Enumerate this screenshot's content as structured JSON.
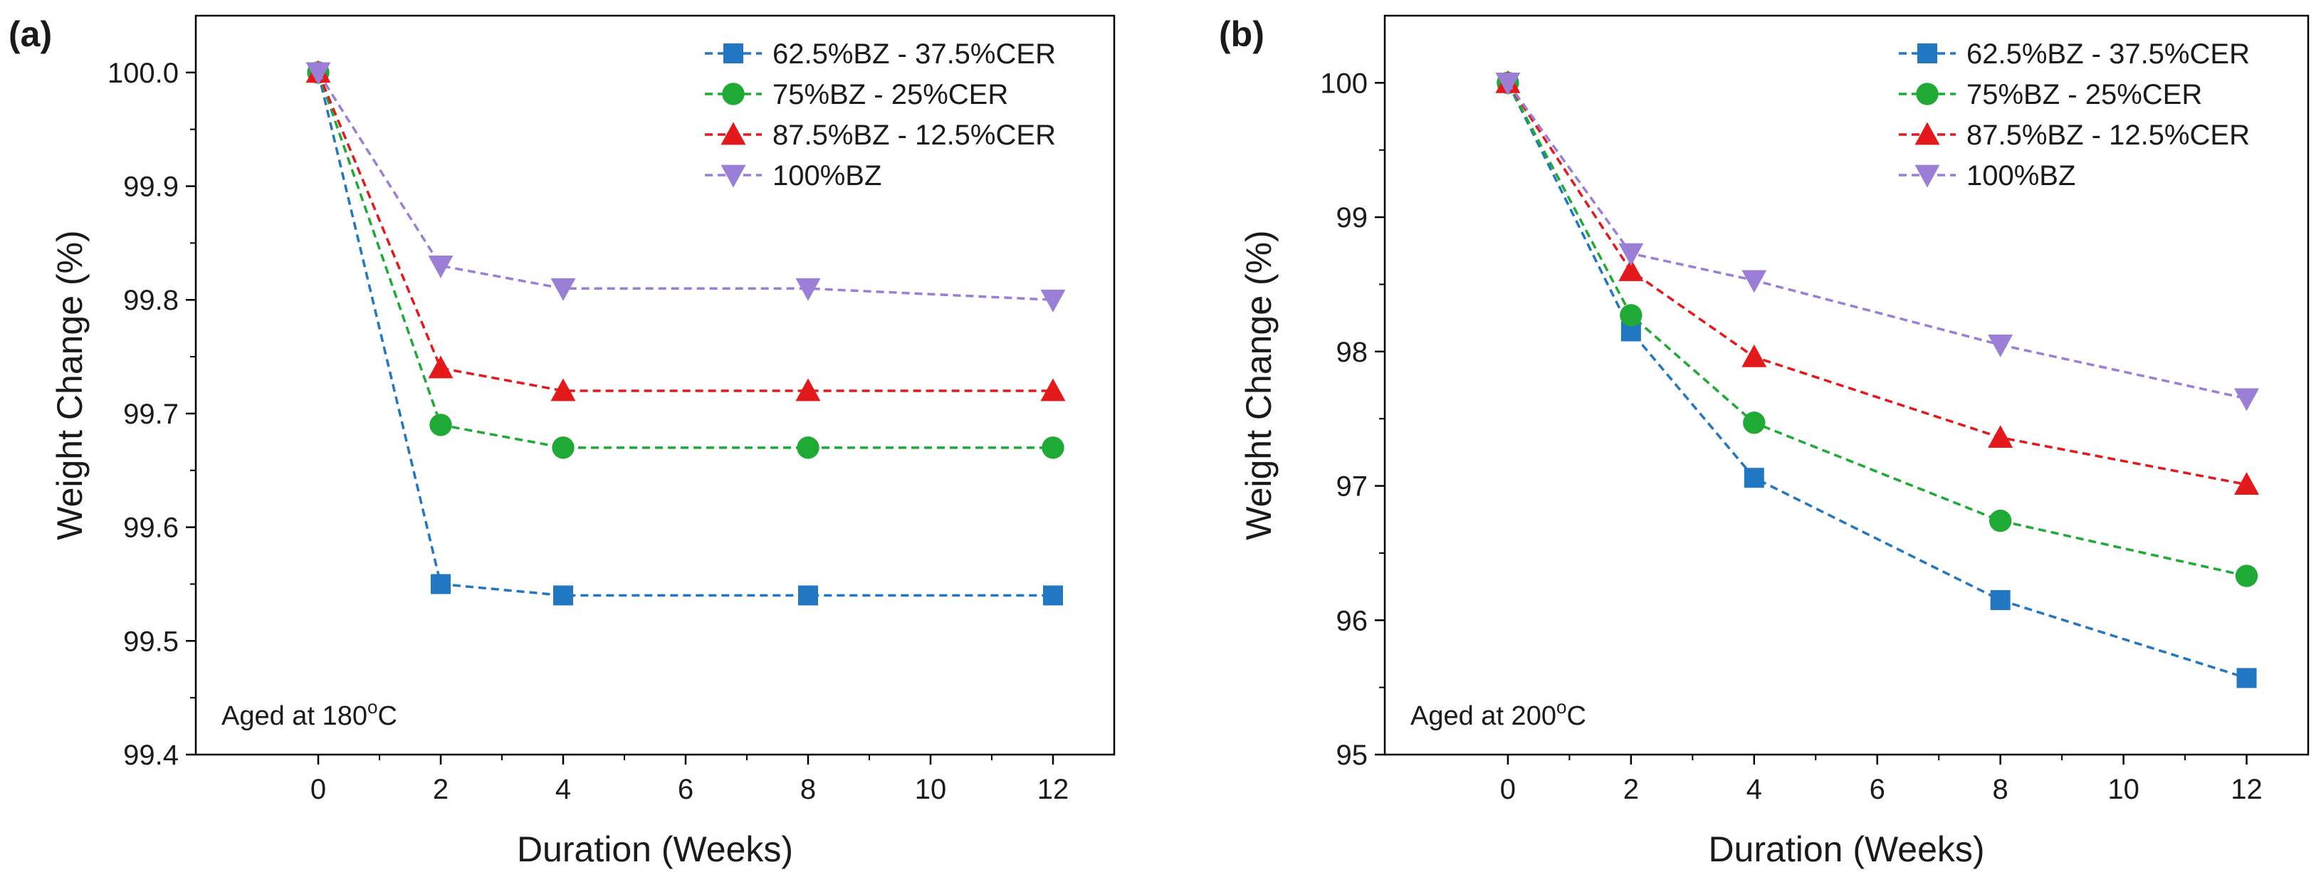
{
  "chart_data": [
    {
      "type": "line",
      "panel_label": "(a)",
      "title": "",
      "xlabel": "Duration (Weeks)",
      "ylabel": "Weight Change (%)",
      "xlim": [
        -2,
        13
      ],
      "ylim": [
        99.4,
        100.05
      ],
      "x_ticks": [
        "0",
        "2",
        "4",
        "6",
        "8",
        "10",
        "12"
      ],
      "y_ticks": [
        "99.4",
        "99.5",
        "99.6",
        "99.7",
        "99.8",
        "99.9",
        "100.0"
      ],
      "annotation": {
        "prefix": "Aged at 180",
        "sup": "o",
        "suffix": "C"
      },
      "legend_position": "top-right",
      "x": [
        0,
        2,
        4,
        8,
        12
      ],
      "series": [
        {
          "name": "62.5%BZ - 37.5%CER",
          "marker": "square",
          "color": "#2177c2",
          "values": [
            100.0,
            99.55,
            99.54,
            99.54,
            99.54
          ]
        },
        {
          "name": "75%BZ - 25%CER",
          "marker": "circle",
          "color": "#1faa35",
          "values": [
            100.0,
            99.69,
            99.67,
            99.67,
            99.67
          ]
        },
        {
          "name": "87.5%BZ - 12.5%CER",
          "marker": "triangle-up",
          "color": "#e3191c",
          "values": [
            100.0,
            99.74,
            99.72,
            99.72,
            99.72
          ]
        },
        {
          "name": "100%BZ",
          "marker": "triangle-down",
          "color": "#9b7fd6",
          "values": [
            100.0,
            99.83,
            99.81,
            99.81,
            99.8
          ]
        }
      ]
    },
    {
      "type": "line",
      "panel_label": "(b)",
      "title": "",
      "xlabel": "Duration (Weeks)",
      "ylabel": "Weight Change (%)",
      "xlim": [
        -2,
        13
      ],
      "ylim": [
        95,
        100.5
      ],
      "x_ticks": [
        "0",
        "2",
        "4",
        "6",
        "8",
        "10",
        "12"
      ],
      "y_ticks": [
        "95",
        "96",
        "97",
        "98",
        "99",
        "100"
      ],
      "annotation": {
        "prefix": "Aged at 200",
        "sup": "o",
        "suffix": "C"
      },
      "legend_position": "top-right",
      "x": [
        0,
        2,
        4,
        8,
        12
      ],
      "series": [
        {
          "name": "62.5%BZ - 37.5%CER",
          "marker": "square",
          "color": "#2177c2",
          "values": [
            100.0,
            98.15,
            97.06,
            96.15,
            95.57
          ]
        },
        {
          "name": "75%BZ - 25%CER",
          "marker": "circle",
          "color": "#1faa35",
          "values": [
            100.0,
            98.27,
            97.47,
            96.74,
            96.33
          ]
        },
        {
          "name": "87.5%BZ - 12.5%CER",
          "marker": "triangle-up",
          "color": "#e3191c",
          "values": [
            100.0,
            98.6,
            97.96,
            97.36,
            97.01
          ]
        },
        {
          "name": "100%BZ",
          "marker": "triangle-down",
          "color": "#9b7fd6",
          "values": [
            100.0,
            98.73,
            98.53,
            98.05,
            97.65
          ]
        }
      ]
    }
  ]
}
